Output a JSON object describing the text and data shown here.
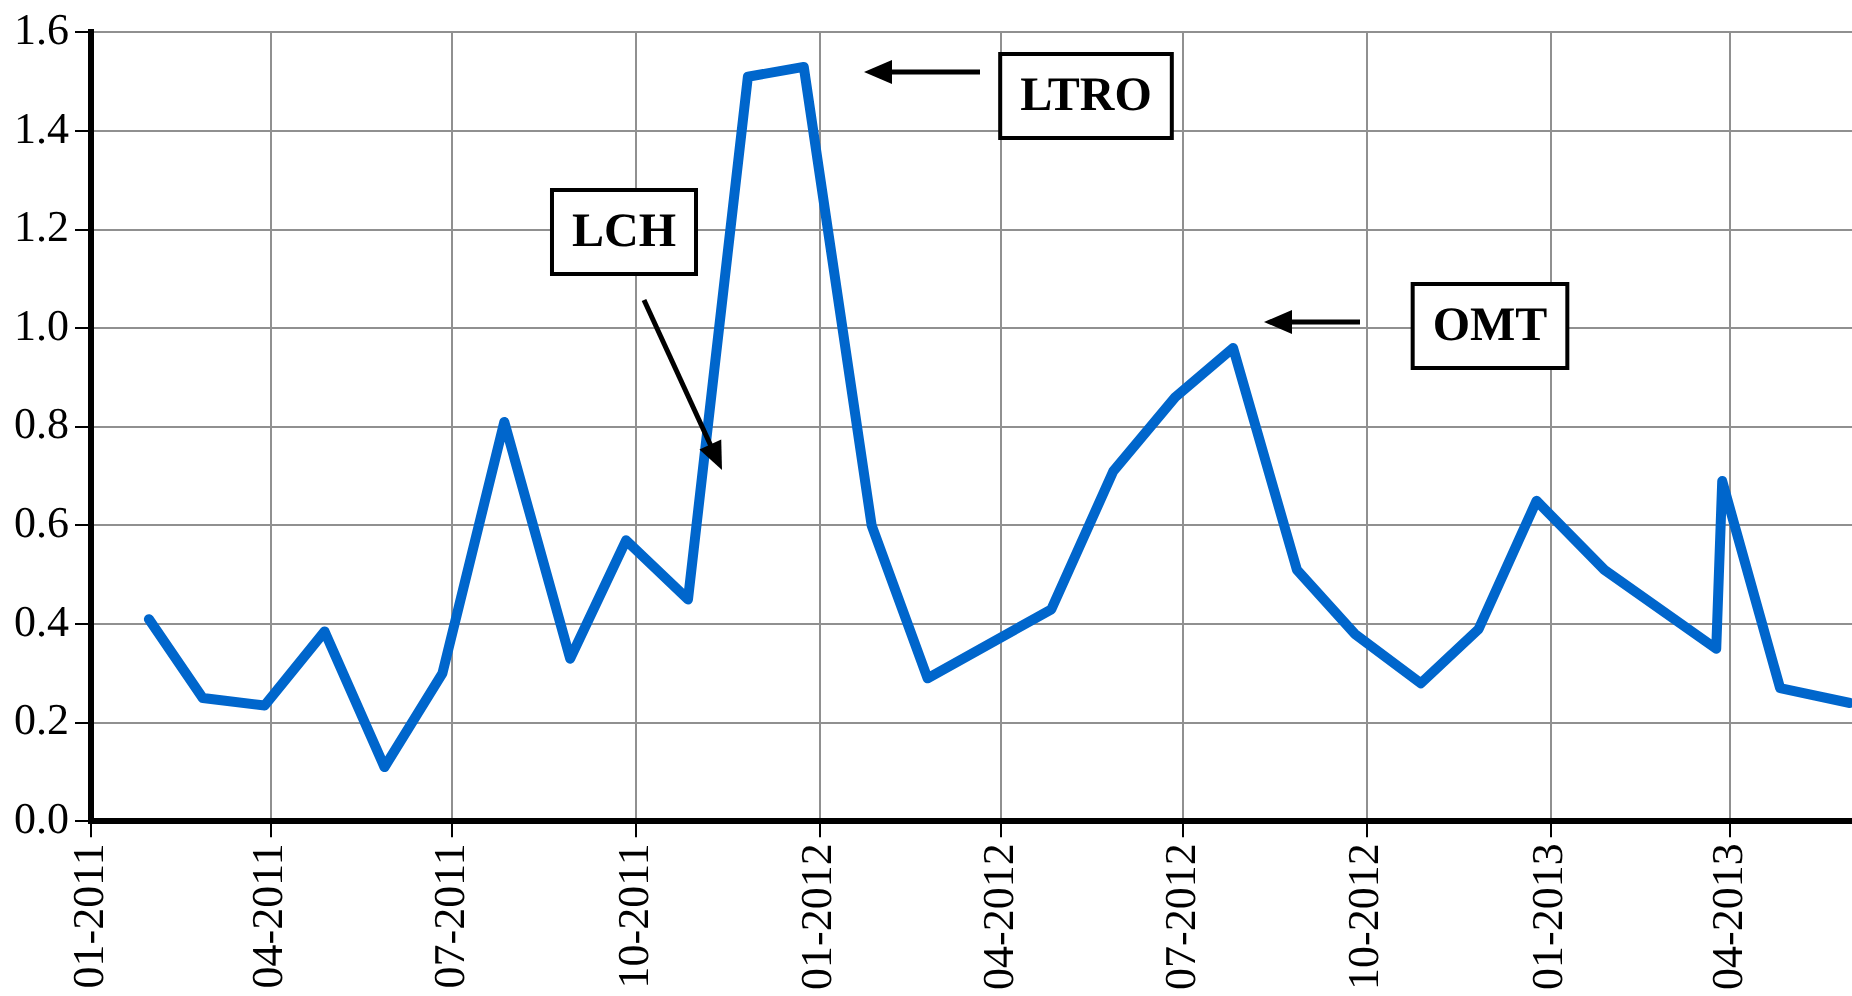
{
  "chart_data": {
    "type": "line",
    "x": [
      "2011-01-30",
      "2011-02-26",
      "2011-03-29",
      "2011-04-28",
      "2011-05-28",
      "2011-06-26",
      "2011-07-27",
      "2011-08-29",
      "2011-09-26",
      "2011-10-27",
      "2011-11-26",
      "2011-12-24",
      "2012-01-27",
      "2012-02-24",
      "2012-04-26",
      "2012-05-27",
      "2012-06-27",
      "2012-07-26",
      "2012-08-27",
      "2012-09-25",
      "2012-10-28",
      "2012-11-26",
      "2012-12-25",
      "2013-01-28",
      "2013-03-25",
      "2013-03-28",
      "2013-04-26",
      "2013-05-31"
    ],
    "series": [
      {
        "color": "#0066cc",
        "values": [
          0.41,
          0.25,
          0.235,
          0.385,
          0.11,
          0.3,
          0.81,
          0.33,
          0.57,
          0.45,
          1.51,
          1.53,
          0.6,
          0.29,
          0.43,
          0.71,
          0.86,
          0.96,
          0.51,
          0.38,
          0.28,
          0.39,
          0.65,
          0.51,
          0.35,
          0.69,
          0.27,
          0.24
        ]
      }
    ],
    "xlim": [
      "2011-01-01",
      "2013-06-01"
    ],
    "xticks": [
      {
        "value": "2011-01-01",
        "label": "01-2011"
      },
      {
        "value": "2011-04-01",
        "label": "04-2011"
      },
      {
        "value": "2011-07-01",
        "label": "07-2011"
      },
      {
        "value": "2011-10-01",
        "label": "10-2011"
      },
      {
        "value": "2012-01-01",
        "label": "01-2012"
      },
      {
        "value": "2012-04-01",
        "label": "04-2012"
      },
      {
        "value": "2012-07-01",
        "label": "07-2012"
      },
      {
        "value": "2012-10-01",
        "label": "10-2012"
      },
      {
        "value": "2013-01-01",
        "label": "01-2013"
      },
      {
        "value": "2013-04-01",
        "label": "04-2013"
      }
    ],
    "ylim": [
      0,
      1.6
    ],
    "yticks": [
      {
        "value": 0,
        "label": "0.0"
      },
      0.2,
      0.4,
      0.6,
      0.8,
      {
        "value": 1,
        "label": "1.0"
      },
      1.2,
      1.4,
      1.6
    ],
    "annotations": [
      "LCH",
      "LTRO",
      "OMT"
    ],
    "grid": true,
    "legend": false,
    "marker": "none",
    "line_style": "solid"
  }
}
